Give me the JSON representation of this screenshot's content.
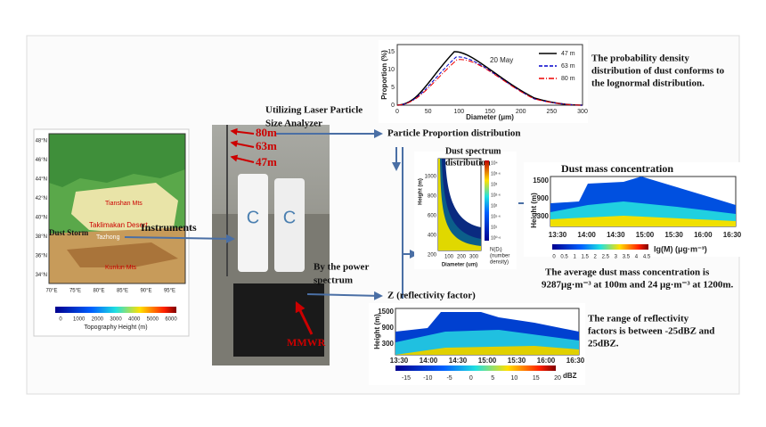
{
  "map": {
    "labels": {
      "dust_storm": "Dust Storm",
      "desert": "Taklimakan Desert",
      "station": "Tazhong",
      "mountain_north": "Tianshan Mts",
      "mountain_south": "Kunlun Mts"
    },
    "lat_ticks": [
      "48°N",
      "46°N",
      "44°N",
      "42°N",
      "40°N",
      "38°N",
      "36°N",
      "34°N"
    ],
    "lon_ticks": [
      "70°E",
      "75°E",
      "80°E",
      "85°E",
      "90°E",
      "95°E"
    ],
    "colorbar_title": "Topography Height (m)",
    "colorbar_ticks": [
      "0",
      "1000",
      "2000",
      "3000",
      "4000",
      "5000",
      "6000"
    ]
  },
  "photo": {
    "heights": [
      "80m",
      "63m",
      "47m"
    ],
    "radar": "MMWR"
  },
  "annotations": {
    "instruments": "Instruments",
    "laser_line1": "Utilizing Laser Particle",
    "laser_line2": "Size Analyzer",
    "particle_proportion": "Particle Proportion distribution",
    "power_line1": "By  the power",
    "power_line2": "spectrum",
    "reflectivity": "Z (reflectivity factor)"
  },
  "proportion_plot": {
    "y_label": "Proportion (%)",
    "x_label": "Diameter (μm)",
    "date": "20 May",
    "legend": [
      "47 m",
      "63 m",
      "80 m"
    ],
    "xticks": [
      "0",
      "50",
      "100",
      "150",
      "200",
      "250",
      "300"
    ],
    "yticks": [
      "0",
      "5",
      "10",
      "15"
    ],
    "note": [
      "The probability density",
      "distribution of dust conforms to",
      "the lognormal distribution."
    ]
  },
  "spectrum_plot": {
    "title_line1": "Dust spectrum",
    "title_line2": "distribution",
    "y_label": "Height (m)",
    "x_label": "Diameter (um)",
    "yticks": [
      "1000",
      "800",
      "600",
      "400",
      "200"
    ],
    "xticks": [
      "100",
      "200",
      "300"
    ],
    "colorbar_ticks": [
      "10⁴",
      "10³·⁶",
      "10³",
      "10²·⁶",
      "10²",
      "10¹·⁶",
      "10¹",
      "10⁰·⁶"
    ],
    "colorbar_label": [
      "N(Dᵢ)",
      "(number",
      "density)"
    ]
  },
  "mass_plot": {
    "title": "Dust mass concentration",
    "y_label": "Height (m)",
    "yticks": [
      "1500",
      "900",
      "300"
    ],
    "xticks": [
      "13:30",
      "14:00",
      "14:30",
      "15:00",
      "15:30",
      "16:00",
      "16:30"
    ],
    "colorbar_ticks": [
      "0",
      "0.5",
      "1",
      "1.5",
      "2",
      "2.5",
      "3",
      "3.5",
      "4",
      "4.5"
    ],
    "colorbar_label": "lg(M) (μg·m⁻³)",
    "note": [
      "The average dust mass concentration is",
      "9287μg·m⁻³ at 100m and 24  μg·m⁻³ at 1200m."
    ]
  },
  "z_plot": {
    "y_label": "Height (m)",
    "yticks": [
      "1500",
      "900",
      "300"
    ],
    "xticks": [
      "13:30",
      "14:00",
      "14:30",
      "15:00",
      "15:30",
      "16:00",
      "16:30"
    ],
    "colorbar_ticks": [
      "-15",
      "-10",
      "-5",
      "0",
      "5",
      "10",
      "15",
      "20"
    ],
    "colorbar_unit": "dBZ",
    "note": [
      "The range of  reflectivity",
      "factors is between -25dBZ and",
      "25dBZ."
    ]
  }
}
